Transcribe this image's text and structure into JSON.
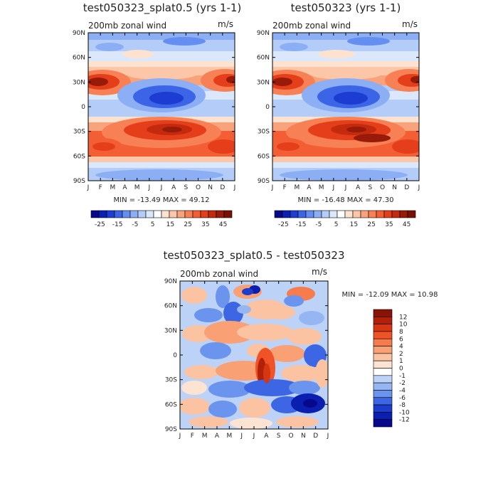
{
  "chart_data": [
    {
      "type": "heatmap",
      "title": "test050323_splat0.5 (yrs 1-1)",
      "variable": "200mb zonal wind",
      "units": "m/s",
      "x_ticks": [
        "J",
        "F",
        "M",
        "A",
        "M",
        "J",
        "J",
        "A",
        "S",
        "O",
        "N",
        "D",
        "J"
      ],
      "y_ticks": [
        "90N",
        "60N",
        "30N",
        "0",
        "30S",
        "60S",
        "90S"
      ],
      "y_range": [
        -90,
        90
      ],
      "stats": "MIN = -13.49  MAX =  49.12",
      "min": -13.49,
      "max": 49.12,
      "colorbar_labels": [
        "-25",
        "-15",
        "-5",
        "5",
        "15",
        "25",
        "35",
        "45"
      ],
      "colorbar_levels": [
        -30,
        -25,
        -20,
        -15,
        -10,
        -5,
        0,
        5,
        10,
        15,
        20,
        25,
        30,
        35,
        40,
        45,
        50
      ]
    },
    {
      "type": "heatmap",
      "title": "test050323 (yrs 1-1)",
      "variable": "200mb zonal wind",
      "units": "m/s",
      "x_ticks": [
        "J",
        "F",
        "M",
        "A",
        "M",
        "J",
        "J",
        "A",
        "S",
        "O",
        "N",
        "D",
        "J"
      ],
      "y_ticks": [
        "90N",
        "60N",
        "30N",
        "0",
        "30S",
        "60S",
        "90S"
      ],
      "y_range": [
        -90,
        90
      ],
      "stats": "MIN = -16.48  MAX =  47.30",
      "min": -16.48,
      "max": 47.3,
      "colorbar_labels": [
        "-25",
        "-15",
        "-5",
        "5",
        "15",
        "25",
        "35",
        "45"
      ],
      "colorbar_levels": [
        -30,
        -25,
        -20,
        -15,
        -10,
        -5,
        0,
        5,
        10,
        15,
        20,
        25,
        30,
        35,
        40,
        45,
        50
      ]
    },
    {
      "type": "heatmap",
      "title": "test050323_splat0.5 - test050323",
      "variable": "200mb zonal wind",
      "units": "m/s",
      "x_ticks": [
        "J",
        "F",
        "M",
        "A",
        "M",
        "J",
        "J",
        "A",
        "S",
        "O",
        "N",
        "D",
        "J"
      ],
      "y_ticks": [
        "90N",
        "60N",
        "30N",
        "0",
        "30S",
        "60S",
        "90S"
      ],
      "y_range": [
        -90,
        90
      ],
      "stats": "MIN = -12.09 MAX =  10.98",
      "min": -12.09,
      "max": 10.98,
      "colorbar_labels": [
        "12",
        "10",
        "8",
        "6",
        "4",
        "2",
        "1",
        "0",
        "-1",
        "-2",
        "-4",
        "-6",
        "-8",
        "-10",
        "-12"
      ],
      "colorbar_levels": [
        -14,
        -12,
        -10,
        -8,
        -6,
        -4,
        -2,
        -1,
        0,
        1,
        2,
        4,
        6,
        8,
        10,
        12,
        14
      ]
    }
  ],
  "colors": {
    "blue_scale": [
      "#08088c",
      "#0a20b4",
      "#1c3cd2",
      "#3c64e6",
      "#648ef0",
      "#8caef5",
      "#b4cdf8",
      "#dbe8fb"
    ],
    "white": "#ffffff",
    "red_scale": [
      "#fde2d0",
      "#fbc7a8",
      "#f9a37c",
      "#f78054",
      "#f45e34",
      "#e43e1a",
      "#c42a0e",
      "#981a08",
      "#781006"
    ],
    "diff_colors": [
      "#08088c",
      "#0a1fb0",
      "#1c3ccd",
      "#3c66e3",
      "#6a94ed",
      "#95b6f2",
      "#bcd3f7",
      "#ffffff",
      "#fde3d1",
      "#fbc3a2",
      "#f9a074",
      "#f77c4d",
      "#ef5326",
      "#d63612",
      "#b3200a",
      "#8a1206"
    ]
  }
}
